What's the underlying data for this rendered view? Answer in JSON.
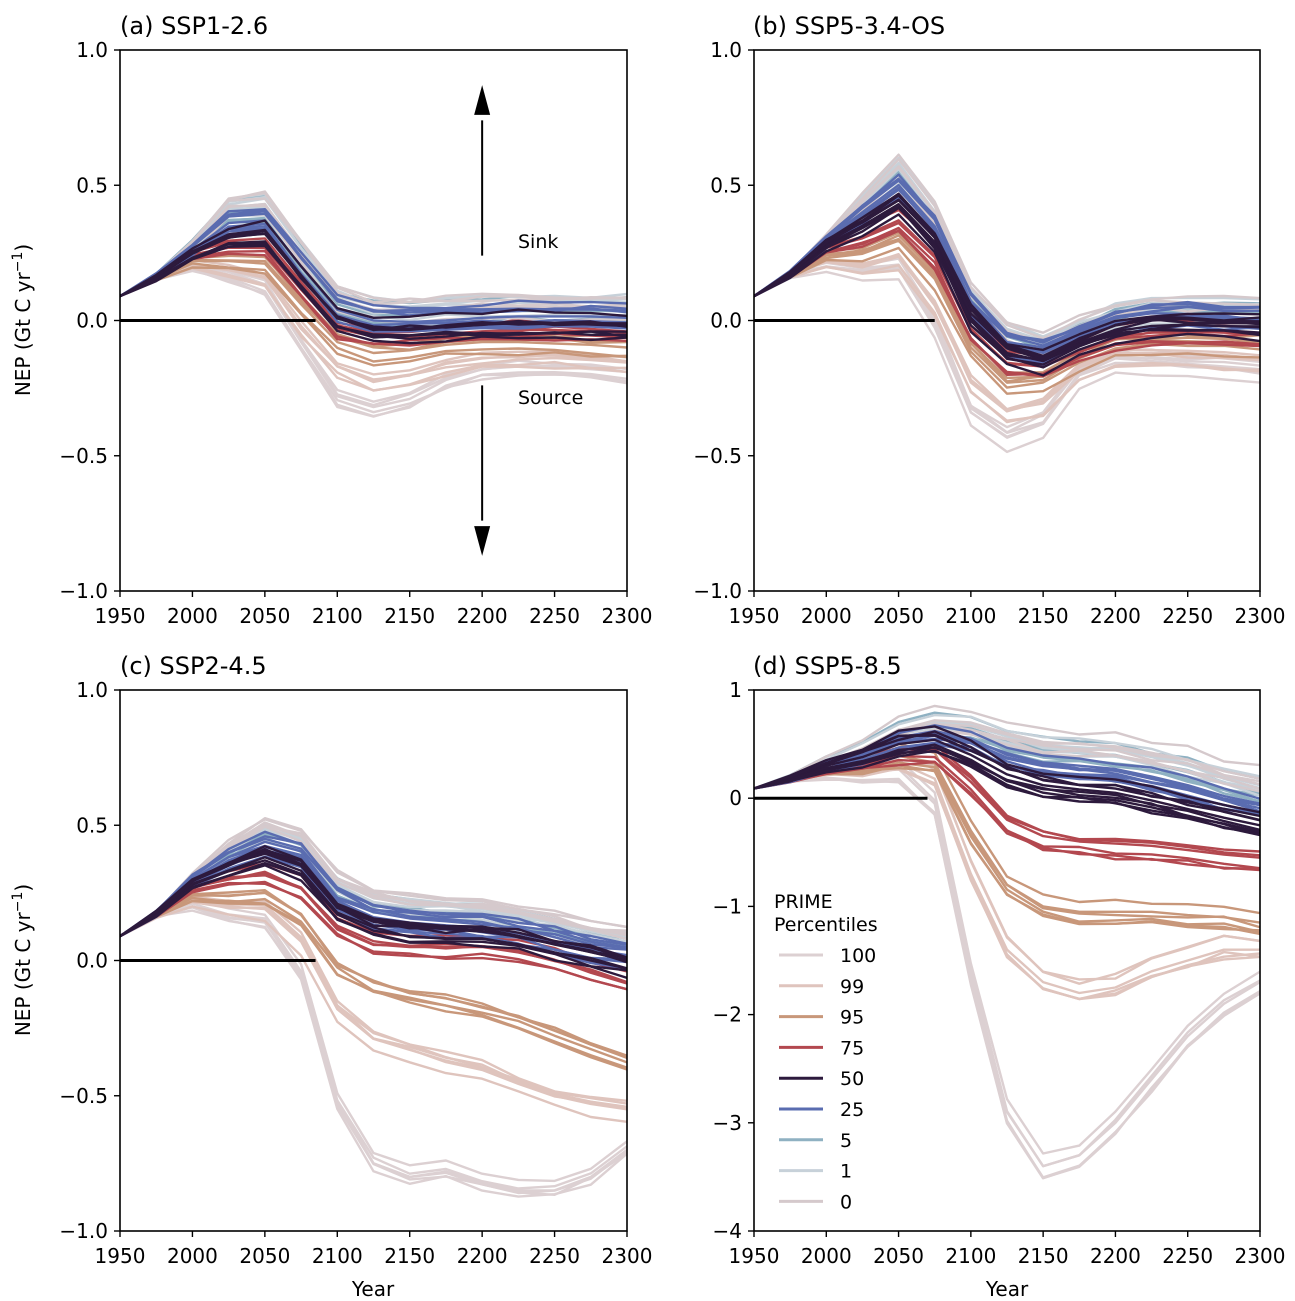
{
  "figure": {
    "xlabel": "Year",
    "ylabel": "NEP (Gt C yr",
    "ylabel_sup": "−1",
    "ylabel_end": ")"
  },
  "colors": {
    "0": "#d5c9cc",
    "1": "#c7d1d9",
    "5": "#8fb1c2",
    "25": "#5a6cb0",
    "50": "#2d1a3d",
    "75": "#b3484f",
    "95": "#c8977a",
    "99": "#dfc4bd",
    "100": "#dcd0d2",
    "zero_line": "#000000",
    "frame": "#000000"
  },
  "legend": {
    "title_line1": "PRIME",
    "title_line2": "Percentiles",
    "location": "lower-left of panel d",
    "entries": [
      {
        "label": "100",
        "color_key": "100"
      },
      {
        "label": "99",
        "color_key": "99"
      },
      {
        "label": "95",
        "color_key": "95"
      },
      {
        "label": "75",
        "color_key": "75"
      },
      {
        "label": "50",
        "color_key": "50"
      },
      {
        "label": "25",
        "color_key": "25"
      },
      {
        "label": "5",
        "color_key": "5"
      },
      {
        "label": "1",
        "color_key": "1"
      },
      {
        "label": "0",
        "color_key": "0"
      }
    ]
  },
  "annotations": {
    "sink": "Sink",
    "source": "Source"
  },
  "chart_data": [
    {
      "type": "line",
      "title": "(a) SSP1-2.6",
      "xlabel": "",
      "ylabel": "NEP (Gt C yr⁻¹)",
      "xlim": [
        1950,
        2300
      ],
      "ylim": [
        -1.0,
        1.0
      ],
      "xticks": [
        1950,
        2000,
        2050,
        2100,
        2150,
        2200,
        2250,
        2300
      ],
      "yticks": [
        -1.0,
        -0.5,
        0.0,
        0.5,
        1.0
      ],
      "ytick_labels": [
        "−1.0",
        "−0.5",
        "0.0",
        "0.5",
        "1.0"
      ],
      "zero_line_until": 2085,
      "x": [
        1950,
        1975,
        2000,
        2025,
        2050,
        2075,
        2100,
        2125,
        2150,
        2175,
        2200,
        2225,
        2250,
        2275,
        2300
      ],
      "series": [
        {
          "name": "0",
          "values": [
            0.09,
            0.16,
            0.27,
            0.42,
            0.43,
            0.25,
            0.08,
            0.04,
            0.04,
            0.045,
            0.05,
            0.05,
            0.05,
            0.05,
            0.05
          ]
        },
        {
          "name": "1",
          "values": [
            0.09,
            0.16,
            0.27,
            0.41,
            0.42,
            0.24,
            0.07,
            0.03,
            0.03,
            0.035,
            0.04,
            0.045,
            0.045,
            0.045,
            0.045
          ]
        },
        {
          "name": "5",
          "values": [
            0.09,
            0.16,
            0.27,
            0.4,
            0.41,
            0.23,
            0.06,
            0.02,
            0.02,
            0.025,
            0.03,
            0.035,
            0.035,
            0.035,
            0.035
          ]
        },
        {
          "name": "25",
          "values": [
            0.09,
            0.16,
            0.26,
            0.36,
            0.37,
            0.2,
            0.04,
            0.0,
            -0.005,
            0.0,
            0.01,
            0.015,
            0.015,
            0.015,
            0.01
          ]
        },
        {
          "name": "50",
          "values": [
            0.09,
            0.16,
            0.25,
            0.31,
            0.32,
            0.16,
            0.01,
            -0.03,
            -0.03,
            -0.02,
            -0.015,
            -0.01,
            -0.01,
            -0.015,
            -0.02
          ]
        },
        {
          "name": "75",
          "values": [
            0.09,
            0.16,
            0.24,
            0.27,
            0.27,
            0.12,
            -0.03,
            -0.06,
            -0.06,
            -0.05,
            -0.04,
            -0.035,
            -0.035,
            -0.04,
            -0.045
          ]
        },
        {
          "name": "95",
          "values": [
            0.09,
            0.16,
            0.22,
            0.22,
            0.21,
            0.06,
            -0.08,
            -0.12,
            -0.11,
            -0.09,
            -0.08,
            -0.08,
            -0.085,
            -0.09,
            -0.1
          ]
        },
        {
          "name": "99",
          "values": [
            0.09,
            0.16,
            0.21,
            0.19,
            0.16,
            -0.02,
            -0.17,
            -0.22,
            -0.2,
            -0.16,
            -0.14,
            -0.13,
            -0.13,
            -0.14,
            -0.15
          ]
        },
        {
          "name": "100",
          "values": [
            0.09,
            0.16,
            0.2,
            0.17,
            0.13,
            -0.08,
            -0.28,
            -0.32,
            -0.29,
            -0.22,
            -0.18,
            -0.17,
            -0.17,
            -0.18,
            -0.19
          ]
        }
      ],
      "annotations": [
        "Sink",
        "Source"
      ]
    },
    {
      "type": "line",
      "title": "(b) SSP5-3.4-OS",
      "xlabel": "",
      "ylabel": "",
      "xlim": [
        1950,
        2300
      ],
      "ylim": [
        -1.0,
        1.0
      ],
      "xticks": [
        1950,
        2000,
        2050,
        2100,
        2150,
        2200,
        2250,
        2300
      ],
      "yticks": [
        -1.0,
        -0.5,
        0.0,
        0.5,
        1.0
      ],
      "ytick_labels": [
        "−1.0",
        "−0.5",
        "0.0",
        "0.5",
        "1.0"
      ],
      "zero_line_until": 2075,
      "x": [
        1950,
        1975,
        2000,
        2025,
        2050,
        2075,
        2100,
        2125,
        2150,
        2175,
        2200,
        2225,
        2250,
        2275,
        2300
      ],
      "series": [
        {
          "name": "0",
          "values": [
            0.09,
            0.17,
            0.3,
            0.44,
            0.57,
            0.4,
            0.1,
            -0.04,
            -0.08,
            -0.02,
            0.03,
            0.05,
            0.05,
            0.05,
            0.045
          ]
        },
        {
          "name": "1",
          "values": [
            0.09,
            0.17,
            0.3,
            0.43,
            0.56,
            0.39,
            0.09,
            -0.05,
            -0.09,
            -0.03,
            0.02,
            0.04,
            0.045,
            0.04,
            0.04
          ]
        },
        {
          "name": "5",
          "values": [
            0.09,
            0.17,
            0.3,
            0.42,
            0.54,
            0.38,
            0.08,
            -0.06,
            -0.1,
            -0.04,
            0.01,
            0.03,
            0.035,
            0.03,
            0.03
          ]
        },
        {
          "name": "25",
          "values": [
            0.09,
            0.17,
            0.29,
            0.39,
            0.49,
            0.34,
            0.05,
            -0.09,
            -0.12,
            -0.06,
            -0.01,
            0.01,
            0.015,
            0.01,
            0.005
          ]
        },
        {
          "name": "50",
          "values": [
            0.09,
            0.17,
            0.28,
            0.35,
            0.43,
            0.29,
            0.01,
            -0.12,
            -0.15,
            -0.09,
            -0.04,
            -0.02,
            -0.015,
            -0.02,
            -0.025
          ]
        },
        {
          "name": "75",
          "values": [
            0.09,
            0.17,
            0.27,
            0.31,
            0.37,
            0.24,
            -0.03,
            -0.16,
            -0.17,
            -0.11,
            -0.06,
            -0.045,
            -0.04,
            -0.045,
            -0.05
          ]
        },
        {
          "name": "95",
          "values": [
            0.09,
            0.17,
            0.24,
            0.25,
            0.3,
            0.16,
            -0.1,
            -0.23,
            -0.22,
            -0.14,
            -0.09,
            -0.08,
            -0.08,
            -0.085,
            -0.09
          ]
        },
        {
          "name": "99",
          "values": [
            0.09,
            0.17,
            0.22,
            0.21,
            0.24,
            0.07,
            -0.22,
            -0.33,
            -0.3,
            -0.17,
            -0.12,
            -0.12,
            -0.12,
            -0.13,
            -0.14
          ]
        },
        {
          "name": "100",
          "values": [
            0.09,
            0.17,
            0.2,
            0.18,
            0.19,
            -0.02,
            -0.34,
            -0.43,
            -0.38,
            -0.2,
            -0.14,
            -0.15,
            -0.16,
            -0.17,
            -0.18
          ]
        }
      ]
    },
    {
      "type": "line",
      "title": "(c) SSP2-4.5",
      "xlabel": "Year",
      "ylabel": "NEP (Gt C yr⁻¹)",
      "xlim": [
        1950,
        2300
      ],
      "ylim": [
        -1.0,
        1.0
      ],
      "xticks": [
        1950,
        2000,
        2050,
        2100,
        2150,
        2200,
        2250,
        2300
      ],
      "yticks": [
        -1.0,
        -0.5,
        0.0,
        0.5,
        1.0
      ],
      "ytick_labels": [
        "−1.0",
        "−0.5",
        "0.0",
        "0.5",
        "1.0"
      ],
      "zero_line_until": 2085,
      "x": [
        1950,
        1975,
        2000,
        2025,
        2050,
        2075,
        2100,
        2125,
        2150,
        2175,
        2200,
        2225,
        2250,
        2275,
        2300
      ],
      "series": [
        {
          "name": "0",
          "values": [
            0.09,
            0.17,
            0.31,
            0.42,
            0.5,
            0.46,
            0.3,
            0.24,
            0.22,
            0.21,
            0.2,
            0.18,
            0.15,
            0.12,
            0.1
          ]
        },
        {
          "name": "1",
          "values": [
            0.09,
            0.17,
            0.31,
            0.41,
            0.49,
            0.45,
            0.29,
            0.23,
            0.21,
            0.2,
            0.19,
            0.17,
            0.14,
            0.11,
            0.09
          ]
        },
        {
          "name": "5",
          "values": [
            0.09,
            0.17,
            0.3,
            0.4,
            0.47,
            0.43,
            0.27,
            0.21,
            0.19,
            0.18,
            0.17,
            0.15,
            0.12,
            0.09,
            0.07
          ]
        },
        {
          "name": "25",
          "values": [
            0.09,
            0.17,
            0.29,
            0.37,
            0.42,
            0.38,
            0.22,
            0.16,
            0.14,
            0.13,
            0.12,
            0.1,
            0.07,
            0.04,
            0.02
          ]
        },
        {
          "name": "50",
          "values": [
            0.09,
            0.17,
            0.28,
            0.33,
            0.37,
            0.32,
            0.17,
            0.11,
            0.09,
            0.08,
            0.08,
            0.06,
            0.03,
            0.0,
            -0.03
          ]
        },
        {
          "name": "75",
          "values": [
            0.09,
            0.17,
            0.27,
            0.3,
            0.32,
            0.27,
            0.12,
            0.06,
            0.05,
            0.05,
            0.05,
            0.03,
            0.0,
            -0.04,
            -0.08
          ]
        },
        {
          "name": "95",
          "values": [
            0.09,
            0.17,
            0.24,
            0.24,
            0.25,
            0.17,
            -0.01,
            -0.08,
            -0.12,
            -0.14,
            -0.17,
            -0.21,
            -0.26,
            -0.31,
            -0.36
          ]
        },
        {
          "name": "99",
          "values": [
            0.09,
            0.17,
            0.22,
            0.2,
            0.19,
            0.07,
            -0.18,
            -0.29,
            -0.33,
            -0.37,
            -0.4,
            -0.45,
            -0.5,
            -0.53,
            -0.55
          ]
        },
        {
          "name": "100",
          "values": [
            0.09,
            0.17,
            0.2,
            0.16,
            0.14,
            -0.05,
            -0.52,
            -0.75,
            -0.8,
            -0.78,
            -0.82,
            -0.85,
            -0.85,
            -0.8,
            -0.7
          ]
        }
      ]
    },
    {
      "type": "line",
      "title": "(d) SSP5-8.5",
      "xlabel": "Year",
      "ylabel": "",
      "xlim": [
        1950,
        2300
      ],
      "ylim": [
        -4,
        1
      ],
      "xticks": [
        1950,
        2000,
        2050,
        2100,
        2150,
        2200,
        2250,
        2300
      ],
      "yticks": [
        -4,
        -3,
        -2,
        -1,
        0,
        1
      ],
      "ytick_labels": [
        "−4",
        "−3",
        "−2",
        "−1",
        "0",
        "1"
      ],
      "zero_line_until": 2070,
      "x": [
        1950,
        1975,
        2000,
        2025,
        2050,
        2075,
        2100,
        2125,
        2150,
        2175,
        2200,
        2225,
        2250,
        2275,
        2300
      ],
      "series": [
        {
          "name": "0",
          "values": [
            0.09,
            0.18,
            0.33,
            0.46,
            0.63,
            0.72,
            0.7,
            0.6,
            0.52,
            0.5,
            0.48,
            0.42,
            0.35,
            0.25,
            0.18
          ]
        },
        {
          "name": "1",
          "values": [
            0.09,
            0.18,
            0.33,
            0.45,
            0.62,
            0.71,
            0.68,
            0.57,
            0.49,
            0.47,
            0.45,
            0.38,
            0.3,
            0.2,
            0.12
          ]
        },
        {
          "name": "5",
          "values": [
            0.09,
            0.18,
            0.32,
            0.44,
            0.6,
            0.68,
            0.64,
            0.52,
            0.44,
            0.42,
            0.4,
            0.32,
            0.24,
            0.14,
            0.06
          ]
        },
        {
          "name": "25",
          "values": [
            0.09,
            0.18,
            0.31,
            0.41,
            0.56,
            0.62,
            0.55,
            0.4,
            0.33,
            0.3,
            0.27,
            0.2,
            0.12,
            0.02,
            -0.05
          ]
        },
        {
          "name": "50",
          "values": [
            0.09,
            0.18,
            0.3,
            0.38,
            0.5,
            0.54,
            0.4,
            0.22,
            0.12,
            0.08,
            0.05,
            -0.02,
            -0.1,
            -0.18,
            -0.25
          ]
        },
        {
          "name": "75",
          "values": [
            0.09,
            0.18,
            0.29,
            0.35,
            0.45,
            0.45,
            0.15,
            -0.2,
            -0.35,
            -0.4,
            -0.42,
            -0.44,
            -0.48,
            -0.52,
            -0.55
          ]
        },
        {
          "name": "95",
          "values": [
            0.09,
            0.18,
            0.27,
            0.31,
            0.39,
            0.33,
            -0.3,
            -0.8,
            -1.0,
            -1.05,
            -1.05,
            -1.05,
            -1.08,
            -1.1,
            -1.15
          ]
        },
        {
          "name": "99",
          "values": [
            0.09,
            0.18,
            0.25,
            0.27,
            0.33,
            0.18,
            -0.7,
            -1.4,
            -1.7,
            -1.8,
            -1.75,
            -1.6,
            -1.5,
            -1.4,
            -1.4
          ]
        },
        {
          "name": "100",
          "values": [
            0.09,
            0.18,
            0.23,
            0.23,
            0.27,
            -0.05,
            -1.6,
            -2.9,
            -3.4,
            -3.3,
            -3.0,
            -2.6,
            -2.2,
            -1.9,
            -1.7
          ]
        }
      ]
    }
  ]
}
